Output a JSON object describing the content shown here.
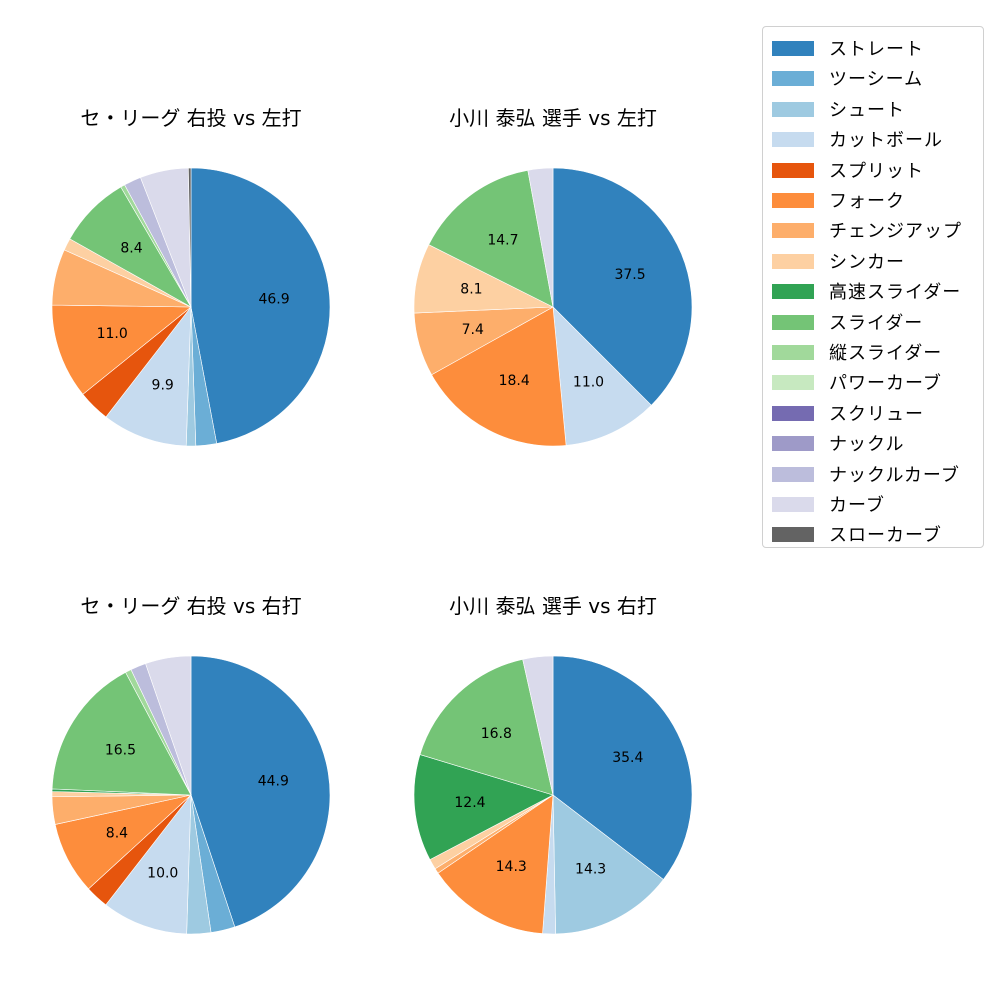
{
  "legend": {
    "items": [
      {
        "label": "ストレート",
        "color": "#3182bd"
      },
      {
        "label": "ツーシーム",
        "color": "#6baed6"
      },
      {
        "label": "シュート",
        "color": "#9ecae1"
      },
      {
        "label": "カットボール",
        "color": "#c6dbef"
      },
      {
        "label": "スプリット",
        "color": "#e6550d"
      },
      {
        "label": "フォーク",
        "color": "#fd8d3c"
      },
      {
        "label": "チェンジアップ",
        "color": "#fdae6b"
      },
      {
        "label": "シンカー",
        "color": "#fdd0a2"
      },
      {
        "label": "高速スライダー",
        "color": "#31a354"
      },
      {
        "label": "スライダー",
        "color": "#74c476"
      },
      {
        "label": "縦スライダー",
        "color": "#a1d99b"
      },
      {
        "label": "パワーカーブ",
        "color": "#c7e9c0"
      },
      {
        "label": "スクリュー",
        "color": "#756bb1"
      },
      {
        "label": "ナックル",
        "color": "#9e9ac8"
      },
      {
        "label": "ナックルカーブ",
        "color": "#bcbddc"
      },
      {
        "label": "カーブ",
        "color": "#dadaeb"
      },
      {
        "label": "スローカーブ",
        "color": "#636363"
      }
    ]
  },
  "chart_data": [
    {
      "type": "pie",
      "title": "セ・リーグ 右投 vs 左打",
      "start_angle_deg": 90,
      "direction": "clockwise",
      "label_threshold": 5,
      "slices": [
        {
          "category": "ストレート",
          "value": 46.9,
          "label": "46.9"
        },
        {
          "category": "ツーシーム",
          "value": 2.4
        },
        {
          "category": "シュート",
          "value": 1.1
        },
        {
          "category": "カットボール",
          "value": 9.9,
          "label": "9.9"
        },
        {
          "category": "スプリット",
          "value": 3.7
        },
        {
          "category": "フォーク",
          "value": 11.0,
          "label": "11.0"
        },
        {
          "category": "チェンジアップ",
          "value": 6.5
        },
        {
          "category": "シンカー",
          "value": 1.4
        },
        {
          "category": "スライダー",
          "value": 8.4,
          "label": "8.4"
        },
        {
          "category": "縦スライダー",
          "value": 0.5
        },
        {
          "category": "ナックルカーブ",
          "value": 2.0
        },
        {
          "category": "カーブ",
          "value": 5.6
        },
        {
          "category": "スローカーブ",
          "value": 0.3
        }
      ]
    },
    {
      "type": "pie",
      "title": "小川 泰弘 選手 vs 左打",
      "start_angle_deg": 90,
      "direction": "clockwise",
      "label_threshold": 5,
      "slices": [
        {
          "category": "ストレート",
          "value": 37.5,
          "label": "37.5"
        },
        {
          "category": "カットボール",
          "value": 11.0,
          "label": "11.0"
        },
        {
          "category": "フォーク",
          "value": 18.4,
          "label": "18.4"
        },
        {
          "category": "チェンジアップ",
          "value": 7.4,
          "label": "7.4"
        },
        {
          "category": "シンカー",
          "value": 8.1,
          "label": "8.1"
        },
        {
          "category": "スライダー",
          "value": 14.7,
          "label": "14.7"
        },
        {
          "category": "カーブ",
          "value": 2.9
        }
      ]
    },
    {
      "type": "pie",
      "title": "セ・リーグ 右投 vs 右打",
      "start_angle_deg": 90,
      "direction": "clockwise",
      "label_threshold": 5,
      "slices": [
        {
          "category": "ストレート",
          "value": 44.9,
          "label": "44.9"
        },
        {
          "category": "ツーシーム",
          "value": 2.8
        },
        {
          "category": "シュート",
          "value": 2.8
        },
        {
          "category": "カットボール",
          "value": 10.0,
          "label": "10.0"
        },
        {
          "category": "スプリット",
          "value": 2.7
        },
        {
          "category": "フォーク",
          "value": 8.4,
          "label": "8.4"
        },
        {
          "category": "チェンジアップ",
          "value": 3.2
        },
        {
          "category": "シンカー",
          "value": 0.6
        },
        {
          "category": "高速スライダー",
          "value": 0.3
        },
        {
          "category": "スライダー",
          "value": 16.5,
          "label": "16.5"
        },
        {
          "category": "縦スライダー",
          "value": 0.7
        },
        {
          "category": "ナックルカーブ",
          "value": 1.8
        },
        {
          "category": "カーブ",
          "value": 5.3
        }
      ]
    },
    {
      "type": "pie",
      "title": "小川 泰弘 選手 vs 右打",
      "start_angle_deg": 90,
      "direction": "clockwise",
      "label_threshold": 5,
      "slices": [
        {
          "category": "ストレート",
          "value": 35.4,
          "label": "35.4"
        },
        {
          "category": "シュート",
          "value": 14.3,
          "label": "14.3"
        },
        {
          "category": "カットボール",
          "value": 1.5
        },
        {
          "category": "フォーク",
          "value": 14.3,
          "label": "14.3"
        },
        {
          "category": "チェンジアップ",
          "value": 0.6
        },
        {
          "category": "シンカー",
          "value": 1.2
        },
        {
          "category": "高速スライダー",
          "value": 12.4,
          "label": "12.4"
        },
        {
          "category": "スライダー",
          "value": 16.8,
          "label": "16.8"
        },
        {
          "category": "カーブ",
          "value": 3.5
        }
      ]
    }
  ]
}
